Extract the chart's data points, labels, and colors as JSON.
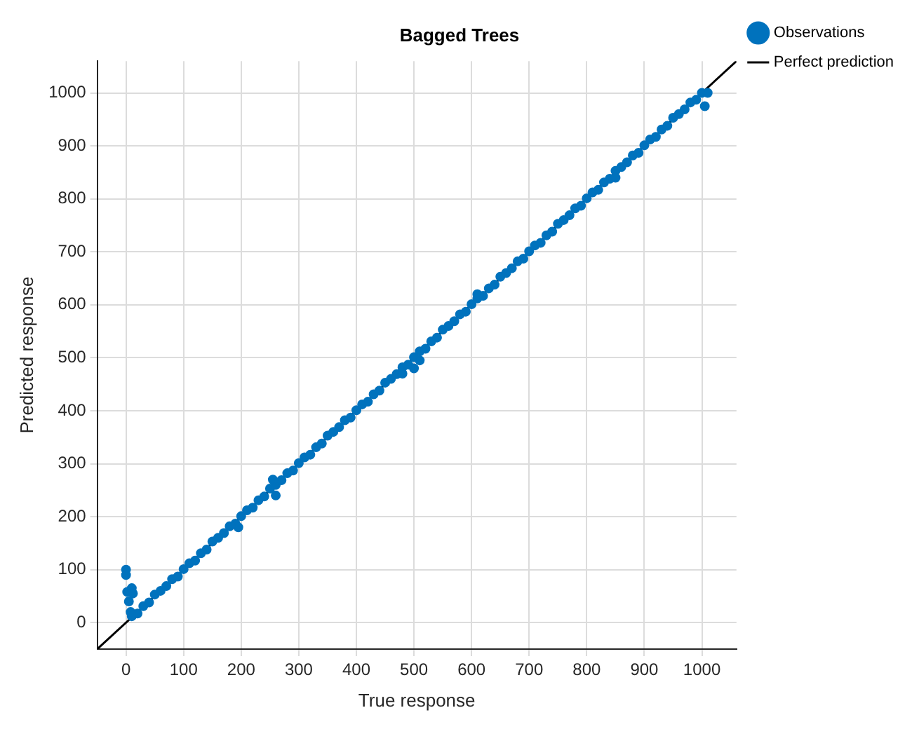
{
  "chart_data": {
    "type": "scatter",
    "title": "Bagged Trees",
    "xlabel": "True response",
    "ylabel": "Predicted response",
    "xlim": [
      -50,
      1060
    ],
    "ylim": [
      -50,
      1060
    ],
    "xticks": [
      0,
      100,
      200,
      300,
      400,
      500,
      600,
      700,
      800,
      900,
      1000
    ],
    "yticks": [
      0,
      100,
      200,
      300,
      400,
      500,
      600,
      700,
      800,
      900,
      1000
    ],
    "grid": true,
    "legend": "top right",
    "series": [
      {
        "name": "Observations",
        "type": "scatter",
        "color": "#0072bd",
        "marker": "circle",
        "x": [
          10,
          20,
          30,
          40,
          50,
          60,
          70,
          80,
          90,
          100,
          110,
          120,
          130,
          140,
          150,
          160,
          170,
          180,
          190,
          200,
          210,
          220,
          230,
          240,
          250,
          260,
          270,
          280,
          290,
          300,
          310,
          320,
          330,
          340,
          350,
          360,
          370,
          380,
          390,
          400,
          410,
          420,
          430,
          440,
          450,
          460,
          470,
          480,
          490,
          500,
          510,
          520,
          530,
          540,
          550,
          560,
          570,
          580,
          590,
          600,
          610,
          620,
          630,
          640,
          650,
          660,
          670,
          680,
          690,
          700,
          710,
          720,
          730,
          740,
          750,
          760,
          770,
          780,
          790,
          800,
          810,
          820,
          830,
          840,
          850,
          860,
          870,
          880,
          890,
          900,
          910,
          920,
          930,
          940,
          950,
          960,
          970,
          980,
          990,
          1000,
          0,
          0,
          2,
          5,
          10,
          12,
          8,
          260,
          255,
          195,
          480,
          500,
          510,
          1005,
          1010,
          610,
          850
        ],
        "values": [
          12,
          17,
          31,
          38,
          53,
          60,
          69,
          82,
          87,
          101,
          112,
          117,
          131,
          138,
          153,
          160,
          169,
          182,
          187,
          201,
          212,
          217,
          231,
          238,
          253,
          260,
          269,
          282,
          287,
          301,
          312,
          317,
          331,
          338,
          353,
          360,
          369,
          382,
          387,
          401,
          412,
          417,
          431,
          438,
          453,
          460,
          469,
          482,
          487,
          501,
          512,
          517,
          531,
          538,
          553,
          560,
          569,
          582,
          587,
          601,
          612,
          617,
          631,
          638,
          653,
          660,
          669,
          682,
          687,
          701,
          712,
          717,
          731,
          738,
          753,
          760,
          769,
          782,
          787,
          801,
          812,
          817,
          831,
          838,
          853,
          860,
          869,
          882,
          887,
          901,
          912,
          917,
          931,
          938,
          953,
          960,
          969,
          982,
          987,
          1000,
          100,
          90,
          58,
          40,
          65,
          55,
          20,
          240,
          270,
          180,
          470,
          480,
          495,
          975,
          1000,
          620,
          840
        ]
      },
      {
        "name": "Perfect prediction",
        "type": "line",
        "color": "#000000",
        "marker": "none",
        "x": [
          -50,
          1060
        ],
        "values": [
          -50,
          1060
        ]
      }
    ]
  }
}
